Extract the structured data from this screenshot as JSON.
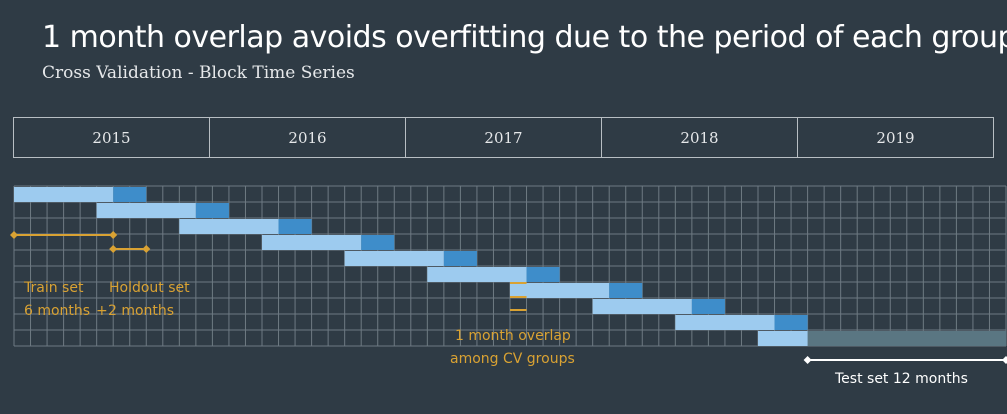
{
  "header": {
    "title": "1 month overlap avoids overfitting due to the period of each group",
    "subtitle": "Cross Validation - Block Time Series"
  },
  "years": [
    "2015",
    "2016",
    "2017",
    "2018",
    "2019"
  ],
  "timeline": {
    "months_total": 60,
    "cv_groups": 10,
    "train_months": 6,
    "holdout_months": 2,
    "step_months": 5,
    "overlap_months": 1,
    "test_months": 12
  },
  "annotations": {
    "train_label_1": "Train set",
    "train_label_2": "6 months",
    "plus": "+",
    "holdout_label_1": "Holdout set",
    "holdout_label_2": "2 months",
    "overlap_label_1": "1 month overlap",
    "overlap_label_2": "among CV groups",
    "test_label": "Test set 12 months"
  },
  "colors": {
    "background": "#2f3b45",
    "train": "#9dcbef",
    "holdout": "#3e8dca",
    "test": "#5a7682",
    "grid": "#6e7a83",
    "accent": "#d9a233",
    "white": "#ffffff"
  }
}
